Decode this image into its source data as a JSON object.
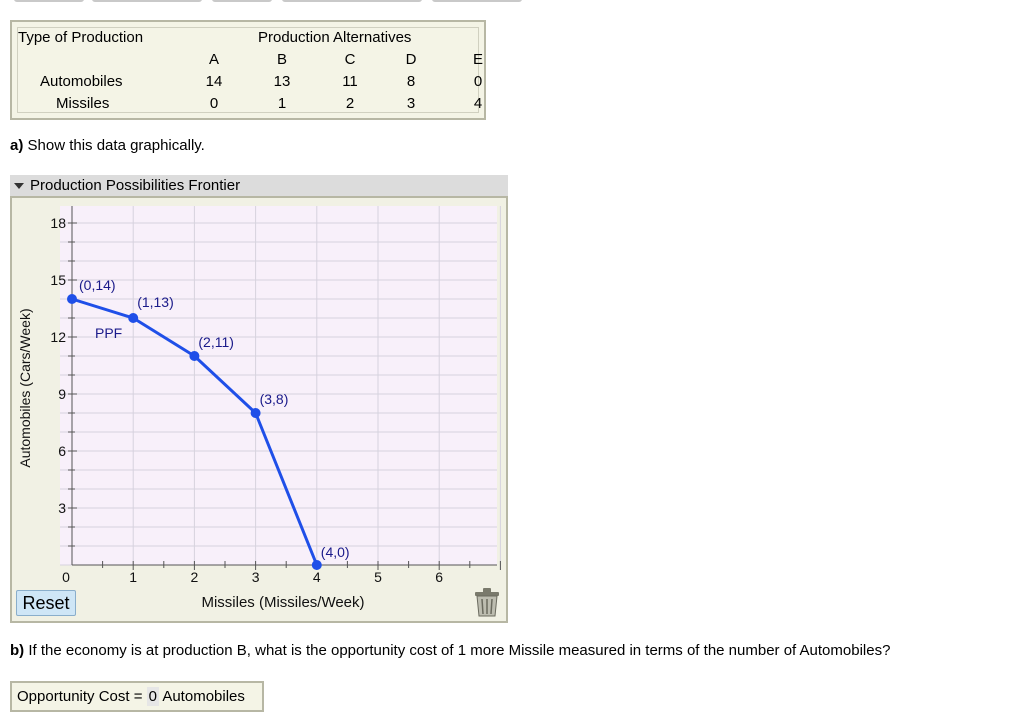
{
  "table": {
    "type_header": "Type of Production",
    "alt_header": "Production Alternatives",
    "columns": [
      "A",
      "B",
      "C",
      "D",
      "E"
    ],
    "rows": [
      {
        "label": "Automobiles",
        "values": [
          "14",
          "13",
          "11",
          "8",
          "0"
        ]
      },
      {
        "label": "Missiles",
        "values": [
          "0",
          "1",
          "2",
          "3",
          "4"
        ]
      }
    ]
  },
  "question_a": {
    "prefix": "a)",
    "text": " Show this data graphically."
  },
  "panel": {
    "title": "Production Possibilities Frontier"
  },
  "chart_data": {
    "type": "line",
    "xlabel": "Missiles (Missiles/Week)",
    "ylabel": "Automobiles (Cars/Week)",
    "xlim": [
      0,
      7
    ],
    "ylim": [
      0,
      19
    ],
    "x_ticks": [
      "1",
      "2",
      "3",
      "4",
      "5",
      "6"
    ],
    "y_ticks": [
      "3",
      "6",
      "9",
      "12",
      "15",
      "18"
    ],
    "origin_label": "0",
    "series": [
      {
        "name": "PPF",
        "x": [
          0,
          1,
          2,
          3,
          4
        ],
        "y": [
          14,
          13,
          11,
          8,
          0
        ],
        "point_labels": [
          "(0,14)",
          "(1,13)",
          "(2,11)",
          "(3,8)",
          "(4,0)"
        ]
      }
    ],
    "line_color": "#1f4fe8",
    "grid": true
  },
  "controls": {
    "reset_label": "Reset",
    "trash_icon": "trash-icon"
  },
  "question_b": {
    "prefix": "b)",
    "text": " If the economy is at production B, what is the opportunity cost of 1 more Missile measured in terms of the number of Automobiles?"
  },
  "answer": {
    "prefix": "Opportunity Cost = ",
    "value": "0",
    "suffix": " Automobiles"
  }
}
